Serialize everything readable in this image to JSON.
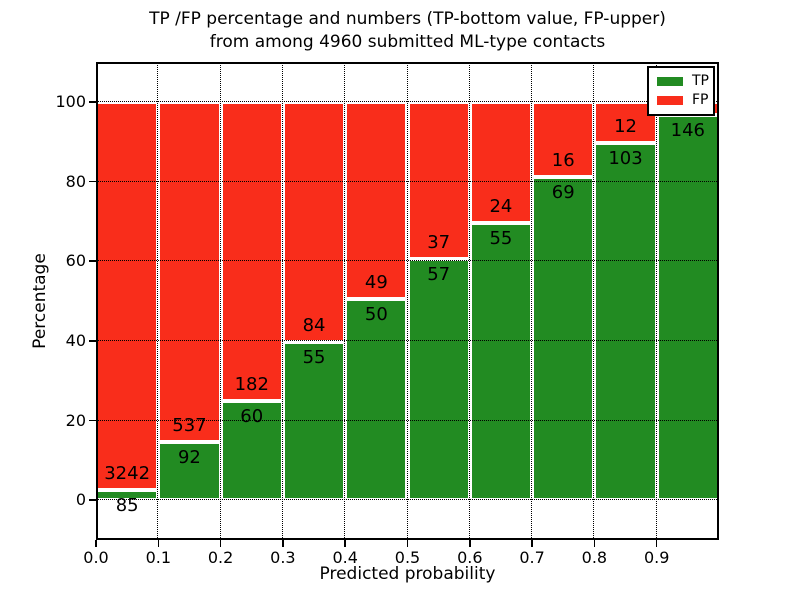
{
  "figure": {
    "title_line1": "TP /FP percentage and numbers (TP-bottom value, FP-upper)",
    "title_line2": "from among 4960 submitted ML-type contacts",
    "xlabel": "Predicted probability",
    "ylabel": "Percentage"
  },
  "colors": {
    "tp_green": "#228b22",
    "fp_red": "#f92d1b",
    "grid": "#000000",
    "frame": "#000000",
    "background": "#ffffff"
  },
  "legend": {
    "position": "upper right",
    "items": [
      {
        "label": "TP",
        "color": "#228b22"
      },
      {
        "label": "FP",
        "color": "#f92d1b"
      }
    ]
  },
  "chart_data": {
    "type": "bar",
    "stacked": true,
    "normalized": "each 0.1-wide bin stacked to 100%",
    "title": "TP /FP percentage and numbers (TP-bottom value, FP-upper) from among 4960 submitted ML-type contacts",
    "xlabel": "Predicted probability",
    "ylabel": "Percentage",
    "xlim": [
      0.0,
      1.0
    ],
    "ylim": [
      -10,
      110
    ],
    "grid": "dotted black, drawn above bars",
    "x_tick_labels": [
      "0.0",
      "0.1",
      "0.2",
      "0.3",
      "0.4",
      "0.5",
      "0.6",
      "0.7",
      "0.8",
      "0.9"
    ],
    "y_tick_values": [
      0,
      20,
      40,
      60,
      80,
      100
    ],
    "y_tick_labels": [
      "0",
      "20",
      "40",
      "60",
      "80",
      "100"
    ],
    "series": [
      {
        "name": "TP",
        "color": "#228b22",
        "position": "bottom"
      },
      {
        "name": "FP",
        "color": "#f92d1b",
        "position": "top"
      }
    ],
    "bin_width": 0.1,
    "bins": [
      {
        "x_start": "0.0",
        "tp_count": 85,
        "fp_count": 3242,
        "tp_label": "85",
        "fp_label": "3242",
        "tp_percent": 2.6,
        "fp_percent": 97.4
      },
      {
        "x_start": "0.1",
        "tp_count": 92,
        "fp_count": 537,
        "tp_label": "92",
        "fp_label": "537",
        "tp_percent": 14.6,
        "fp_percent": 85.4
      },
      {
        "x_start": "0.2",
        "tp_count": 60,
        "fp_count": 182,
        "tp_label": "60",
        "fp_label": "182",
        "tp_percent": 24.8,
        "fp_percent": 75.2
      },
      {
        "x_start": "0.3",
        "tp_count": 55,
        "fp_count": 84,
        "tp_label": "55",
        "fp_label": "84",
        "tp_percent": 39.6,
        "fp_percent": 60.4
      },
      {
        "x_start": "0.4",
        "tp_count": 50,
        "fp_count": 49,
        "tp_label": "50",
        "fp_label": "49",
        "tp_percent": 50.5,
        "fp_percent": 49.5
      },
      {
        "x_start": "0.5",
        "tp_count": 57,
        "fp_count": 37,
        "tp_label": "57",
        "fp_label": "37",
        "tp_percent": 60.6,
        "fp_percent": 39.4
      },
      {
        "x_start": "0.6",
        "tp_count": 55,
        "fp_count": 24,
        "tp_label": "55",
        "fp_label": "24",
        "tp_percent": 69.6,
        "fp_percent": 30.4
      },
      {
        "x_start": "0.7",
        "tp_count": 69,
        "fp_count": 16,
        "tp_label": "69",
        "fp_label": "16",
        "tp_percent": 81.2,
        "fp_percent": 18.8
      },
      {
        "x_start": "0.8",
        "tp_count": 103,
        "fp_count": 12,
        "tp_label": "103",
        "fp_label": "12",
        "tp_percent": 89.6,
        "fp_percent": 10.4
      },
      {
        "x_start": "0.9",
        "tp_count": 146,
        "fp_count": null,
        "tp_label": "146",
        "fp_label": "",
        "tp_percent": 96.7,
        "fp_percent": 3.3
      }
    ]
  }
}
